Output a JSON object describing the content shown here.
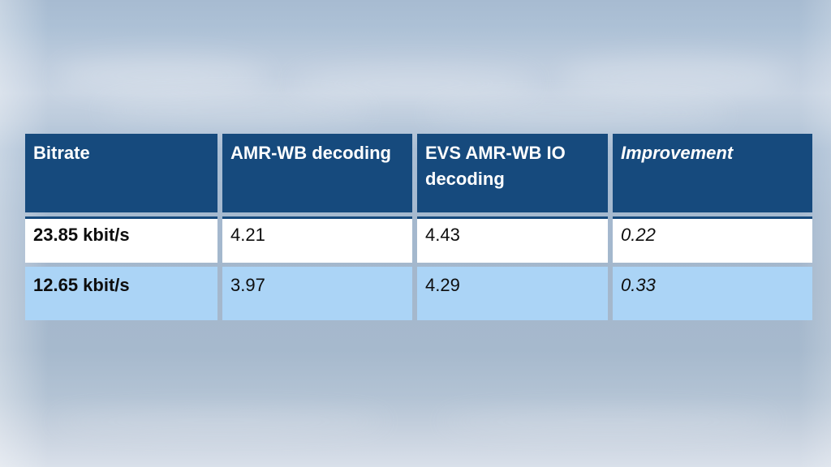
{
  "slide": {
    "kind": "presentation-slide-table",
    "background_color": "#A9BDD3",
    "colors": {
      "header_bg": "#164A7D",
      "header_text": "#FFFFFF",
      "row_white_bg": "#FFFFFF",
      "row_alt_bg": "#ABD4F6",
      "header_underline": "#164A7D",
      "body_text": "#0D0D0D"
    }
  },
  "table": {
    "columns": [
      {
        "label": "Bitrate"
      },
      {
        "label": "AMR-WB decoding"
      },
      {
        "label": "EVS AMR-WB IO decoding"
      },
      {
        "label": "Improvement"
      }
    ],
    "rows": [
      {
        "cells": [
          "23.85 kbit/s",
          "4.21",
          "4.43",
          "0.22"
        ]
      },
      {
        "cells": [
          "12.65 kbit/s",
          "3.97",
          "4.29",
          "0.33"
        ]
      }
    ]
  }
}
